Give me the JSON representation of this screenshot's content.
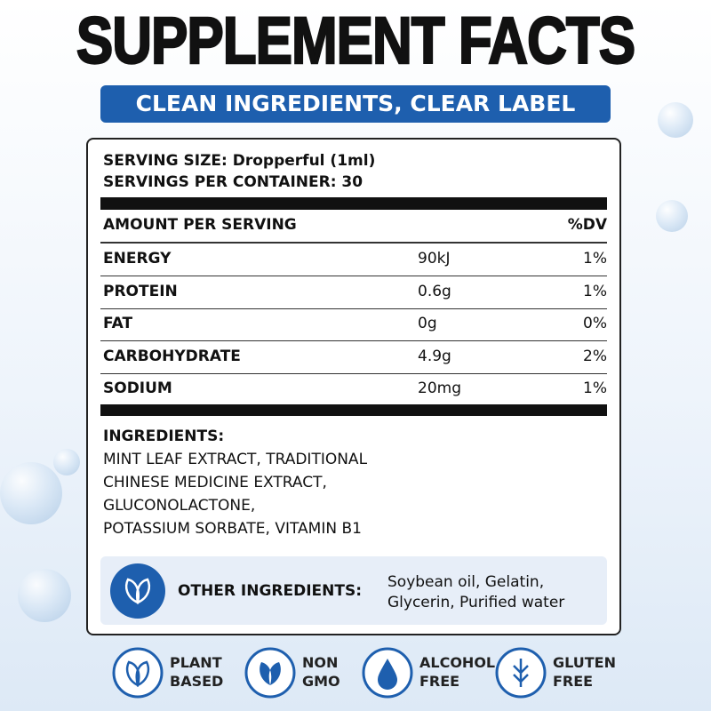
{
  "title": "SUPPLEMENT FACTS",
  "subtitle": "CLEAN INGREDIENTS, CLEAR LABEL",
  "serving": {
    "size": "SERVING SIZE: Dropperful (1ml)",
    "per_container": "SERVINGS PER CONTAINER: 30"
  },
  "table": {
    "header": [
      "AMOUNT PER SERVING",
      "%DV"
    ],
    "rows": [
      [
        "ENERGY",
        "90kJ",
        "1%"
      ],
      [
        "PROTEIN",
        "0.6g",
        "1%"
      ],
      [
        "FAT",
        "0g",
        "0%"
      ],
      [
        "CARBOHYDRATE",
        "4.9g",
        "2%"
      ],
      [
        "SODIUM",
        "20mg",
        "1%"
      ]
    ]
  },
  "ingredients": {
    "heading": "INGREDIENTS:",
    "lines": [
      "MINT LEAF EXTRACT, TRADITIONAL",
      "CHINESE MEDICINE EXTRACT,",
      "GLUCONOLACTONE,",
      "POTASSIUM SORBATE, VITAMIN B1"
    ]
  },
  "other_ingredients": {
    "label": "OTHER INGREDIENTS:",
    "lines": [
      "Soybean oil, Gelatin,",
      "Glycerin, Purified water"
    ]
  },
  "badges": [
    {
      "lines": [
        "PLANT",
        "BASED"
      ]
    },
    {
      "lines": [
        "NON",
        "GMO"
      ]
    },
    {
      "lines": [
        "ALCOHOL",
        "FREE"
      ]
    },
    {
      "lines": [
        "GLUTEN",
        "FREE"
      ]
    }
  ]
}
